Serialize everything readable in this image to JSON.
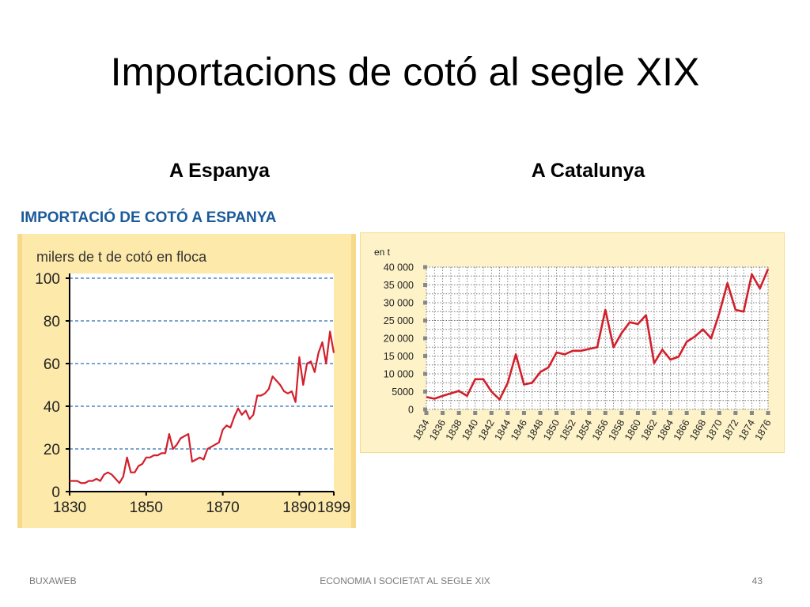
{
  "slide": {
    "title": "Importacions de cotó al segle XIX",
    "left_heading": "A Espanya",
    "right_heading": "A Catalunya"
  },
  "footer": {
    "left": "BUXAWEB",
    "center": "ECONOMIA I SOCIETAT AL SEGLE XIX",
    "page": "43"
  },
  "colors": {
    "line": "#d21f2b",
    "frame": "#fde9a9",
    "title_blue": "#1b5a99",
    "grid_blue": "#2f6eb3"
  },
  "chart_data": [
    {
      "type": "line",
      "title": "IMPORTACIÓ DE COTÓ A ESPANYA",
      "ylabel": "milers de t de cotó en floca",
      "xlabel": "",
      "xlim": [
        1830,
        1899
      ],
      "ylim": [
        0,
        100
      ],
      "x_ticks": [
        "1830",
        "1850",
        "1870",
        "1890",
        "1899"
      ],
      "y_ticks": [
        "0",
        "20",
        "40",
        "60",
        "80",
        "100"
      ],
      "grid": "horizontal-dashed",
      "series": [
        {
          "x": [
            1830,
            1831,
            1832,
            1833,
            1834,
            1835,
            1836,
            1837,
            1838,
            1839,
            1840,
            1841,
            1842,
            1843,
            1844,
            1845,
            1846,
            1847,
            1848,
            1849,
            1850,
            1851,
            1852,
            1853,
            1854,
            1855,
            1856,
            1857,
            1858,
            1859,
            1860,
            1861,
            1862,
            1863,
            1864,
            1865,
            1866,
            1867,
            1868,
            1869,
            1870,
            1871,
            1872,
            1873,
            1874,
            1875,
            1876,
            1877,
            1878,
            1879,
            1880,
            1881,
            1882,
            1883,
            1884,
            1885,
            1886,
            1887,
            1888,
            1889,
            1890,
            1891,
            1892,
            1893,
            1894,
            1895,
            1896,
            1897,
            1898,
            1899
          ],
          "values": [
            5,
            5,
            5,
            4,
            4,
            5,
            5,
            6,
            5,
            8,
            9,
            8,
            6,
            4,
            7,
            16,
            9,
            9,
            12,
            13,
            16,
            16,
            17,
            17,
            18,
            18,
            27,
            20,
            22,
            25,
            26,
            27,
            14,
            15,
            16,
            15,
            20,
            21,
            22,
            23,
            29,
            31,
            30,
            35,
            39,
            36,
            38,
            34,
            36,
            45,
            45,
            46,
            48,
            54,
            52,
            50,
            47,
            46,
            47,
            42,
            63,
            50,
            60,
            61,
            56,
            65,
            70,
            60,
            75,
            65
          ]
        }
      ]
    },
    {
      "type": "line",
      "title": "",
      "ylabel": "en t",
      "xlabel": "",
      "xlim": [
        1834,
        1876
      ],
      "ylim": [
        0,
        40000
      ],
      "x_ticks": [
        "1834",
        "1836",
        "1838",
        "1840",
        "1842",
        "1844",
        "1846",
        "1848",
        "1850",
        "1852",
        "1854",
        "1856",
        "1858",
        "1860",
        "1862",
        "1864",
        "1866",
        "1868",
        "1870",
        "1872",
        "1874",
        "1876"
      ],
      "y_ticks": [
        "0",
        "5000",
        "10 000",
        "15 000",
        "20 000",
        "25 000",
        "30 000",
        "35 000",
        "40 000"
      ],
      "grid": "dotted-both",
      "series": [
        {
          "x": [
            1834,
            1835,
            1836,
            1837,
            1838,
            1839,
            1840,
            1841,
            1842,
            1843,
            1844,
            1845,
            1846,
            1847,
            1848,
            1849,
            1850,
            1851,
            1852,
            1853,
            1854,
            1855,
            1856,
            1857,
            1858,
            1859,
            1860,
            1861,
            1862,
            1863,
            1864,
            1865,
            1866,
            1867,
            1868,
            1869,
            1870,
            1871,
            1872,
            1873,
            1874,
            1875,
            1876
          ],
          "values": [
            3500,
            3000,
            3800,
            4500,
            5200,
            3800,
            8500,
            8500,
            5000,
            2800,
            7500,
            15500,
            7000,
            7500,
            10500,
            11800,
            16000,
            15500,
            16500,
            16500,
            17000,
            17500,
            28000,
            17500,
            21500,
            24500,
            24000,
            26500,
            13000,
            16800,
            14000,
            14800,
            19000,
            20500,
            22500,
            20000,
            27000,
            35500,
            28000,
            27500,
            38000,
            34000,
            39500
          ]
        }
      ]
    }
  ]
}
